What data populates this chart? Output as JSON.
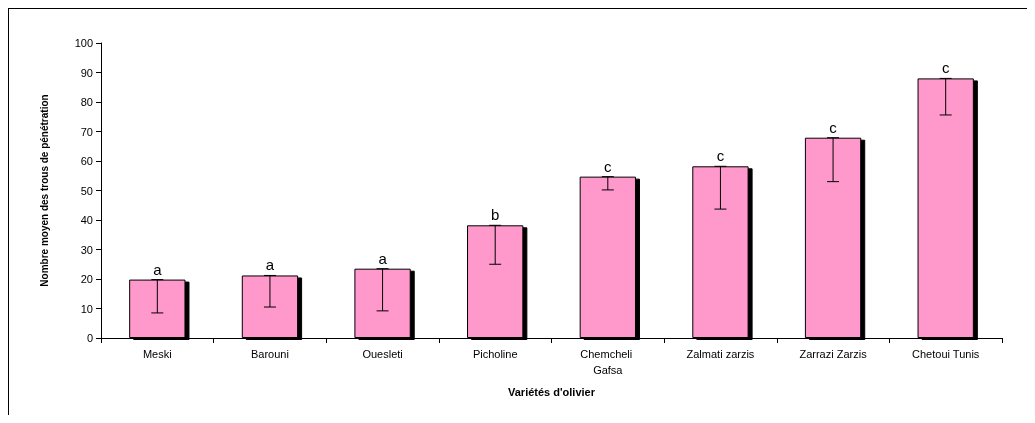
{
  "chart_data": {
    "type": "bar",
    "xlabel": "Variétés d'olivier",
    "ylabel": "Nombre moyen des trous de pénétration",
    "categories": [
      "Meski",
      "Barouni",
      "Ouesleti",
      "Picholine",
      "Chemcheli Gafsa",
      "Zalmati zarzis",
      "Zarrazi Zarzis",
      "Chetoui Tunis"
    ],
    "values": [
      19.8,
      21.2,
      23.5,
      38.2,
      54.7,
      58.2,
      67.9,
      88
    ],
    "errors": [
      [
        8.5,
        19.8
      ],
      [
        10.5,
        21.2
      ],
      [
        9.2,
        23.5
      ],
      [
        25,
        38.2
      ],
      [
        50.2,
        54.7
      ],
      [
        43.7,
        58.2
      ],
      [
        53,
        67.9
      ],
      [
        75.6,
        88
      ]
    ],
    "color": "#ff99cc",
    "ylim": [
      0,
      100
    ],
    "yticks": [
      0,
      10,
      20,
      30,
      40,
      50,
      60,
      70,
      80,
      90,
      100
    ],
    "grid": false,
    "annotations": [
      {
        "text": "a",
        "x": "Meski",
        "y": 19.8
      },
      {
        "text": "a",
        "x": "Barouni",
        "y": 21.2
      },
      {
        "text": "a",
        "x": "Ouesleti",
        "y": 23.5
      },
      {
        "text": "b",
        "x": "Picholine",
        "y": 38.2
      },
      {
        "text": "c",
        "x": "Chemcheli Gafsa",
        "y": 54.7
      },
      {
        "text": "c",
        "x": "Zalmati zarzis",
        "y": 58.2
      },
      {
        "text": "c",
        "x": "Zarrazi Zarzis",
        "y": 67.9
      },
      {
        "text": "c",
        "x": "Chetoui Tunis",
        "y": 88
      }
    ]
  }
}
